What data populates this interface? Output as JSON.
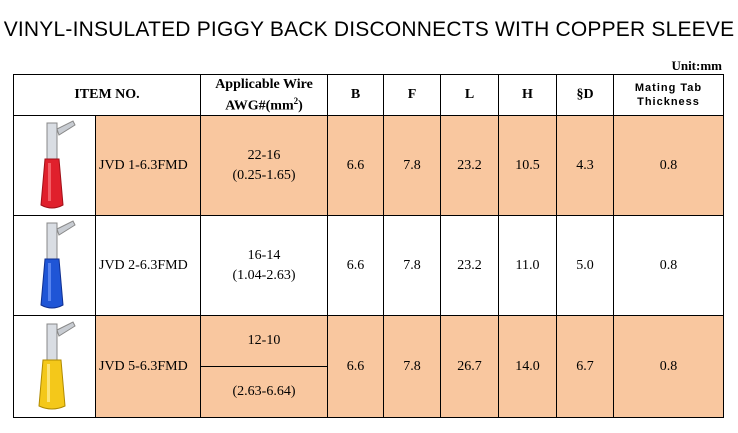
{
  "title": "VINYL-INSULATED PIGGY BACK DISCONNECTS WITH COPPER SLEEVE",
  "unit": "Unit:mm",
  "headers": {
    "item_no": "ITEM NO.",
    "wire_line1": "Applicable Wire",
    "wire_line2": "AWG#(mm",
    "wire_sup": "2",
    "wire_close": ")",
    "b": "B",
    "f": "F",
    "l": "L",
    "h": "H",
    "d": "§D",
    "mating_line1": "Mating Tab",
    "mating_line2": "Thickness"
  },
  "rows": [
    {
      "item": "JVD 1-6.3FMD",
      "awg": "22-16",
      "mm2": "(0.25-1.65)",
      "b": "6.6",
      "f": "7.8",
      "l": "23.2",
      "h": "10.5",
      "d": "4.3",
      "mating": "0.8",
      "color": "#e0202c",
      "shaded": true
    },
    {
      "item": "JVD 2-6.3FMD",
      "awg": "16-14",
      "mm2": "(1.04-2.63)",
      "b": "6.6",
      "f": "7.8",
      "l": "23.2",
      "h": "11.0",
      "d": "5.0",
      "mating": "0.8",
      "color": "#1f55d6",
      "shaded": false
    },
    {
      "item": "JVD 5-6.3FMD",
      "awg": "12-10",
      "mm2": "(2.63-6.64)",
      "b": "6.6",
      "f": "7.8",
      "l": "26.7",
      "h": "14.0",
      "d": "6.7",
      "mating": "0.8",
      "color": "#f4c81a",
      "shaded": true
    }
  ]
}
